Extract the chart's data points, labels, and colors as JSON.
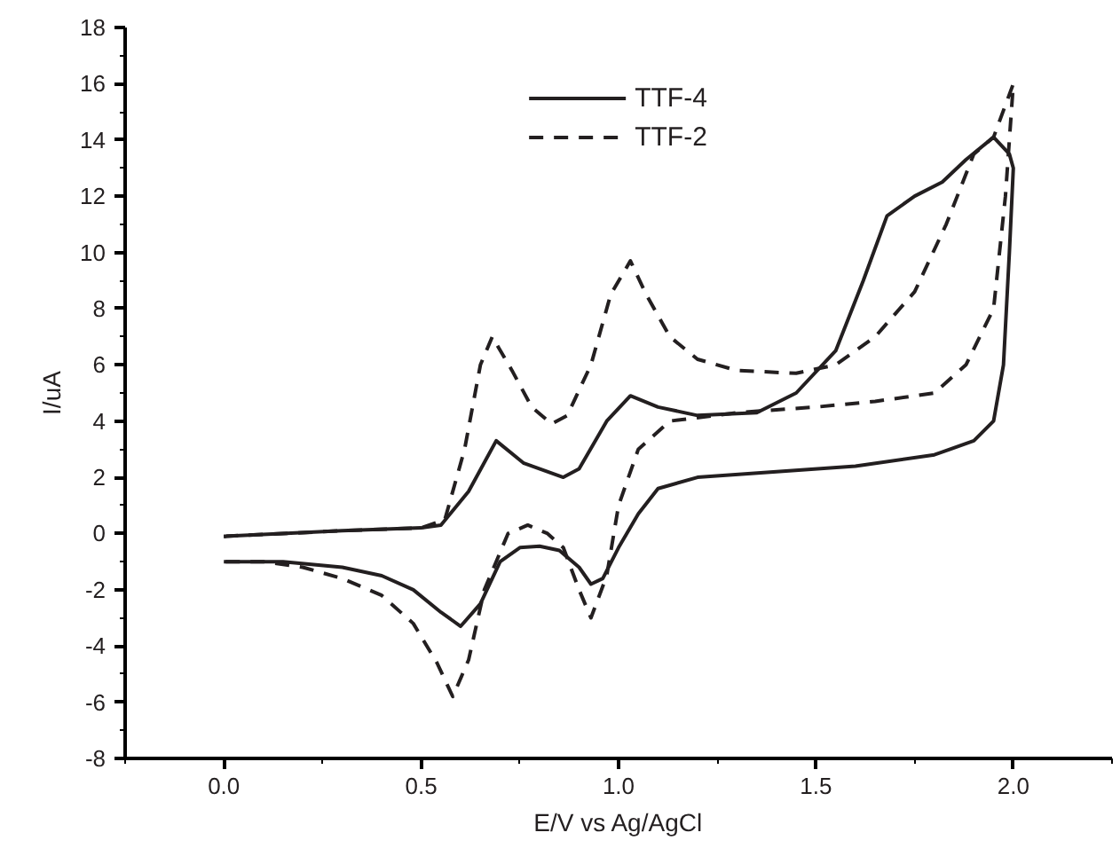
{
  "chart_data": {
    "type": "line",
    "xlabel": "E/V vs Ag/AgCl",
    "ylabel": "I/uA",
    "xlim": [
      -0.25,
      2.25
    ],
    "ylim": [
      -8,
      18
    ],
    "xticks": [
      {
        "value": 0,
        "label": "0.0"
      },
      0.5,
      {
        "value": 1,
        "label": "1.0"
      },
      1.5,
      {
        "value": 2,
        "label": "2.0"
      }
    ],
    "yticks": [
      -8,
      -6,
      -4,
      -2,
      0,
      2,
      4,
      6,
      8,
      10,
      12,
      14,
      16,
      18
    ],
    "grid": false,
    "legend": "top",
    "marker": "none",
    "series": [
      {
        "name": "TTF-4",
        "color": "#231f20",
        "line_style": "solid",
        "x": [
          0,
          0.3,
          0.5,
          0.55,
          0.62,
          0.69,
          0.76,
          0.86,
          0.9,
          0.97,
          1.03,
          1.1,
          1.2,
          1.35,
          1.45,
          1.55,
          1.62,
          1.68,
          1.75,
          1.82,
          1.88,
          1.95,
          1.99,
          2.0,
          1.99,
          1.975,
          1.95,
          1.9,
          1.8,
          1.6,
          1.4,
          1.2,
          1.1,
          1.05,
          1.0,
          0.96,
          0.93,
          0.9,
          0.85,
          0.8,
          0.75,
          0.7,
          0.65,
          0.6,
          0.55,
          0.48,
          0.4,
          0.3,
          0.15,
          0.0
        ],
        "values": [
          -0.1,
          0.1,
          0.2,
          0.3,
          1.5,
          3.3,
          2.5,
          2.0,
          2.3,
          4.0,
          4.9,
          4.5,
          4.2,
          4.3,
          5.0,
          6.5,
          9.0,
          11.3,
          12.0,
          12.5,
          13.3,
          14.1,
          13.5,
          13.0,
          10,
          6,
          4,
          3.3,
          2.8,
          2.4,
          2.2,
          2.0,
          1.6,
          0.7,
          -0.5,
          -1.6,
          -1.8,
          -1.2,
          -0.6,
          -0.45,
          -0.5,
          -1.0,
          -2.5,
          -3.3,
          -2.8,
          -2.0,
          -1.5,
          -1.2,
          -1.0,
          -1.0
        ]
      },
      {
        "name": "TTF-2",
        "color": "#231f20",
        "line_style": "dashed",
        "x": [
          0,
          0.3,
          0.5,
          0.56,
          0.61,
          0.65,
          0.68,
          0.73,
          0.78,
          0.83,
          0.87,
          0.93,
          0.98,
          1.03,
          1.07,
          1.13,
          1.2,
          1.3,
          1.45,
          1.55,
          1.65,
          1.75,
          1.83,
          1.9,
          1.95,
          2.0,
          1.98,
          1.95,
          1.88,
          1.8,
          1.65,
          1.5,
          1.3,
          1.13,
          1.05,
          1.0,
          0.97,
          0.93,
          0.9,
          0.86,
          0.82,
          0.77,
          0.72,
          0.66,
          0.62,
          0.58,
          0.54,
          0.48,
          0.4,
          0.3,
          0.2,
          0.1,
          0.0
        ],
        "values": [
          -0.1,
          0.1,
          0.2,
          0.5,
          3,
          6,
          7.0,
          5.8,
          4.5,
          3.9,
          4.2,
          6,
          8.5,
          9.7,
          8.5,
          7.0,
          6.2,
          5.8,
          5.7,
          6.0,
          7.0,
          8.6,
          11,
          13.5,
          14.1,
          16.0,
          12,
          8,
          6,
          5.0,
          4.7,
          4.5,
          4.3,
          4.0,
          3.0,
          1,
          -1.5,
          -3.0,
          -2.0,
          -0.5,
          0.0,
          0.3,
          0.0,
          -2.0,
          -4.5,
          -5.8,
          -4.6,
          -3.2,
          -2.2,
          -1.6,
          -1.2,
          -1.0,
          -1.0
        ]
      }
    ]
  }
}
